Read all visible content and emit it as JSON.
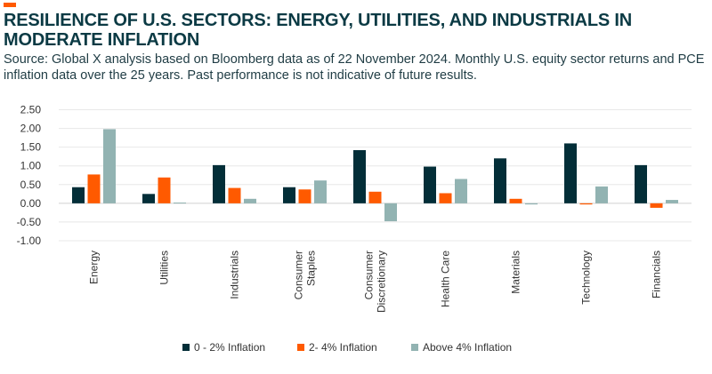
{
  "title": "RESILIENCE OF U.S. SECTORS: ENERGY, UTILITIES, AND INDUSTRIALS IN MODERATE INFLATION",
  "subtitle": "Source: Global X analysis based on Bloomberg data as of 22 November 2024. Monthly U.S. equity sector returns and PCE inflation data over the 25 years. Past performance is not indicative of future results.",
  "colors": {
    "accent": "#ff5a00",
    "series": [
      "#032e38",
      "#ff5a00",
      "#92b3b2"
    ]
  },
  "chart_data": {
    "type": "bar",
    "categories": [
      "Energy",
      "Utilities",
      "Industrials",
      "Consumer Staples",
      "Consumer Discretionary",
      "Health Care",
      "Materials",
      "Technology",
      "Financials"
    ],
    "category_lines": [
      [
        "Energy"
      ],
      [
        "Utilities"
      ],
      [
        "Industrials"
      ],
      [
        "Consumer",
        "Staples"
      ],
      [
        "Consumer",
        "Discretionary"
      ],
      [
        "Health Care"
      ],
      [
        "Materials"
      ],
      [
        "Technology"
      ],
      [
        "Financials"
      ]
    ],
    "series": [
      {
        "name": "0 - 2% Inflation",
        "values": [
          0.43,
          0.25,
          1.02,
          0.43,
          1.42,
          0.98,
          1.2,
          1.6,
          1.02
        ]
      },
      {
        "name": "2- 4% Inflation",
        "values": [
          0.77,
          0.69,
          0.41,
          0.37,
          0.31,
          0.27,
          0.12,
          -0.03,
          -0.12
        ]
      },
      {
        "name": "Above 4% Inflation",
        "values": [
          1.98,
          0.02,
          0.12,
          0.61,
          -0.48,
          0.65,
          -0.03,
          0.45,
          0.09
        ]
      }
    ],
    "yticks": [
      "2.50",
      "2.00",
      "1.50",
      "1.00",
      "0.50",
      "0.00",
      "-0.50",
      "-1.00"
    ],
    "ylim": [
      -1.0,
      2.5
    ],
    "grid": true,
    "legend_position": "bottom"
  }
}
